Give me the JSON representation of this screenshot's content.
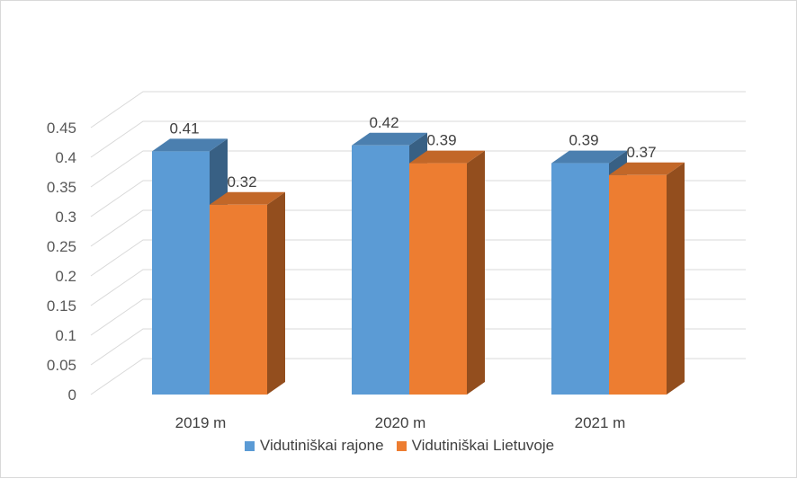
{
  "chart_data": {
    "type": "bar",
    "categories": [
      "2019 m",
      "2020 m",
      "2021 m"
    ],
    "series": [
      {
        "name": "Vidutiniškai rajone",
        "values": [
          0.41,
          0.42,
          0.39
        ],
        "labels": [
          "0.41",
          "0.42",
          "0.39"
        ],
        "color": "#5b9bd5"
      },
      {
        "name": "Vidutiniškai Lietuvoje",
        "values": [
          0.32,
          0.39,
          0.37
        ],
        "labels": [
          "0.32",
          "0.39",
          "0.37"
        ],
        "color": "#ed7d31"
      }
    ],
    "yticks": [
      "0",
      "0.05",
      "0.1",
      "0.15",
      "0.2",
      "0.25",
      "0.3",
      "0.35",
      "0.4",
      "0.45"
    ],
    "ylim": [
      0,
      0.45
    ],
    "grid": true,
    "legend_position": "bottom",
    "style": "3d-clustered-column"
  }
}
